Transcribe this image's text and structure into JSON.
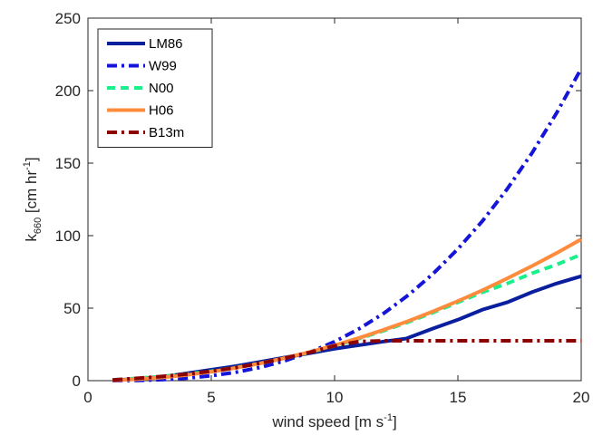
{
  "chart_data": {
    "type": "line",
    "title": "",
    "xlabel": {
      "main": "wind speed [m s",
      "sup": "-1",
      "end": "]"
    },
    "ylabel": {
      "main": "k",
      "sub": "660",
      "mid": " [cm hr",
      "sup": "-1",
      "end": "]"
    },
    "xlim": [
      0,
      20
    ],
    "ylim": [
      0,
      250
    ],
    "xticks": [
      0,
      5,
      10,
      15,
      20
    ],
    "yticks": [
      0,
      50,
      100,
      150,
      200,
      250
    ],
    "grid": false,
    "legend_position": "top-left",
    "series": [
      {
        "name": "LM86",
        "color": "#0a1f9e",
        "dash": "solid",
        "points": [
          [
            1,
            0.3
          ],
          [
            2,
            1.2
          ],
          [
            3,
            2.7
          ],
          [
            3.6,
            4
          ],
          [
            4,
            5
          ],
          [
            5,
            7.5
          ],
          [
            6,
            10
          ],
          [
            7,
            13
          ],
          [
            8,
            16
          ],
          [
            9,
            19
          ],
          [
            10,
            22
          ],
          [
            11,
            24.5
          ],
          [
            12,
            27
          ],
          [
            12.9,
            29
          ],
          [
            14,
            36
          ],
          [
            15,
            42
          ],
          [
            16,
            49
          ],
          [
            17,
            54
          ],
          [
            18,
            61
          ],
          [
            19,
            67
          ],
          [
            20,
            72
          ]
        ]
      },
      {
        "name": "W99",
        "color": "#1515d9",
        "dash": "dashdot",
        "points": [
          [
            1,
            0.03
          ],
          [
            2,
            0.2
          ],
          [
            3,
            0.7
          ],
          [
            4,
            1.7
          ],
          [
            5,
            3.4
          ],
          [
            6,
            5.8
          ],
          [
            7,
            9.2
          ],
          [
            8,
            13.8
          ],
          [
            9,
            19.6
          ],
          [
            10,
            26.9
          ],
          [
            11,
            35.8
          ],
          [
            12,
            46.5
          ],
          [
            13,
            59.1
          ],
          [
            14,
            73.8
          ],
          [
            15,
            90.8
          ],
          [
            16,
            110.2
          ],
          [
            17,
            132.2
          ],
          [
            18,
            156.9
          ],
          [
            19,
            184.5
          ],
          [
            20,
            215.2
          ]
        ]
      },
      {
        "name": "N00",
        "color": "#19f089",
        "dash": "dashed",
        "points": [
          [
            1,
            0.5
          ],
          [
            2,
            1.6
          ],
          [
            3,
            2.9
          ],
          [
            4,
            4.5
          ],
          [
            5,
            6.5
          ],
          [
            6,
            9
          ],
          [
            7,
            12
          ],
          [
            8,
            15.5
          ],
          [
            9,
            19.5
          ],
          [
            10,
            24
          ],
          [
            11,
            29
          ],
          [
            12,
            34.5
          ],
          [
            13,
            40.5
          ],
          [
            14,
            47
          ],
          [
            15,
            54
          ],
          [
            16,
            61
          ],
          [
            17,
            67
          ],
          [
            18,
            74
          ],
          [
            19,
            80
          ],
          [
            20,
            87
          ]
        ]
      },
      {
        "name": "H06",
        "color": "#ff8c3c",
        "dash": "solid",
        "points": [
          [
            1,
            0.2
          ],
          [
            2,
            1
          ],
          [
            3,
            2.2
          ],
          [
            4,
            3.9
          ],
          [
            5,
            6.1
          ],
          [
            6,
            8.8
          ],
          [
            7,
            12
          ],
          [
            8,
            15.6
          ],
          [
            9,
            19.8
          ],
          [
            10,
            24.4
          ],
          [
            11,
            29.5
          ],
          [
            12,
            35.1
          ],
          [
            13,
            41.2
          ],
          [
            14,
            47.8
          ],
          [
            15,
            54.9
          ],
          [
            16,
            62.4
          ],
          [
            17,
            70.5
          ],
          [
            18,
            79
          ],
          [
            19,
            88
          ],
          [
            20,
            97.5
          ]
        ]
      },
      {
        "name": "B13m",
        "color": "#8b0000",
        "dash": "dashdot",
        "points": [
          [
            1,
            0.5
          ],
          [
            2,
            1.6
          ],
          [
            3,
            2.9
          ],
          [
            4,
            4.5
          ],
          [
            5,
            6.5
          ],
          [
            6,
            9
          ],
          [
            7,
            12
          ],
          [
            8,
            15.5
          ],
          [
            9,
            19.5
          ],
          [
            10,
            24
          ],
          [
            11,
            27
          ],
          [
            12,
            27.5
          ],
          [
            13,
            27.5
          ],
          [
            14,
            27.5
          ],
          [
            15,
            27.5
          ],
          [
            16,
            27.5
          ],
          [
            17,
            27.5
          ],
          [
            18,
            27.5
          ],
          [
            19,
            27.5
          ],
          [
            20,
            27.5
          ]
        ]
      }
    ]
  }
}
